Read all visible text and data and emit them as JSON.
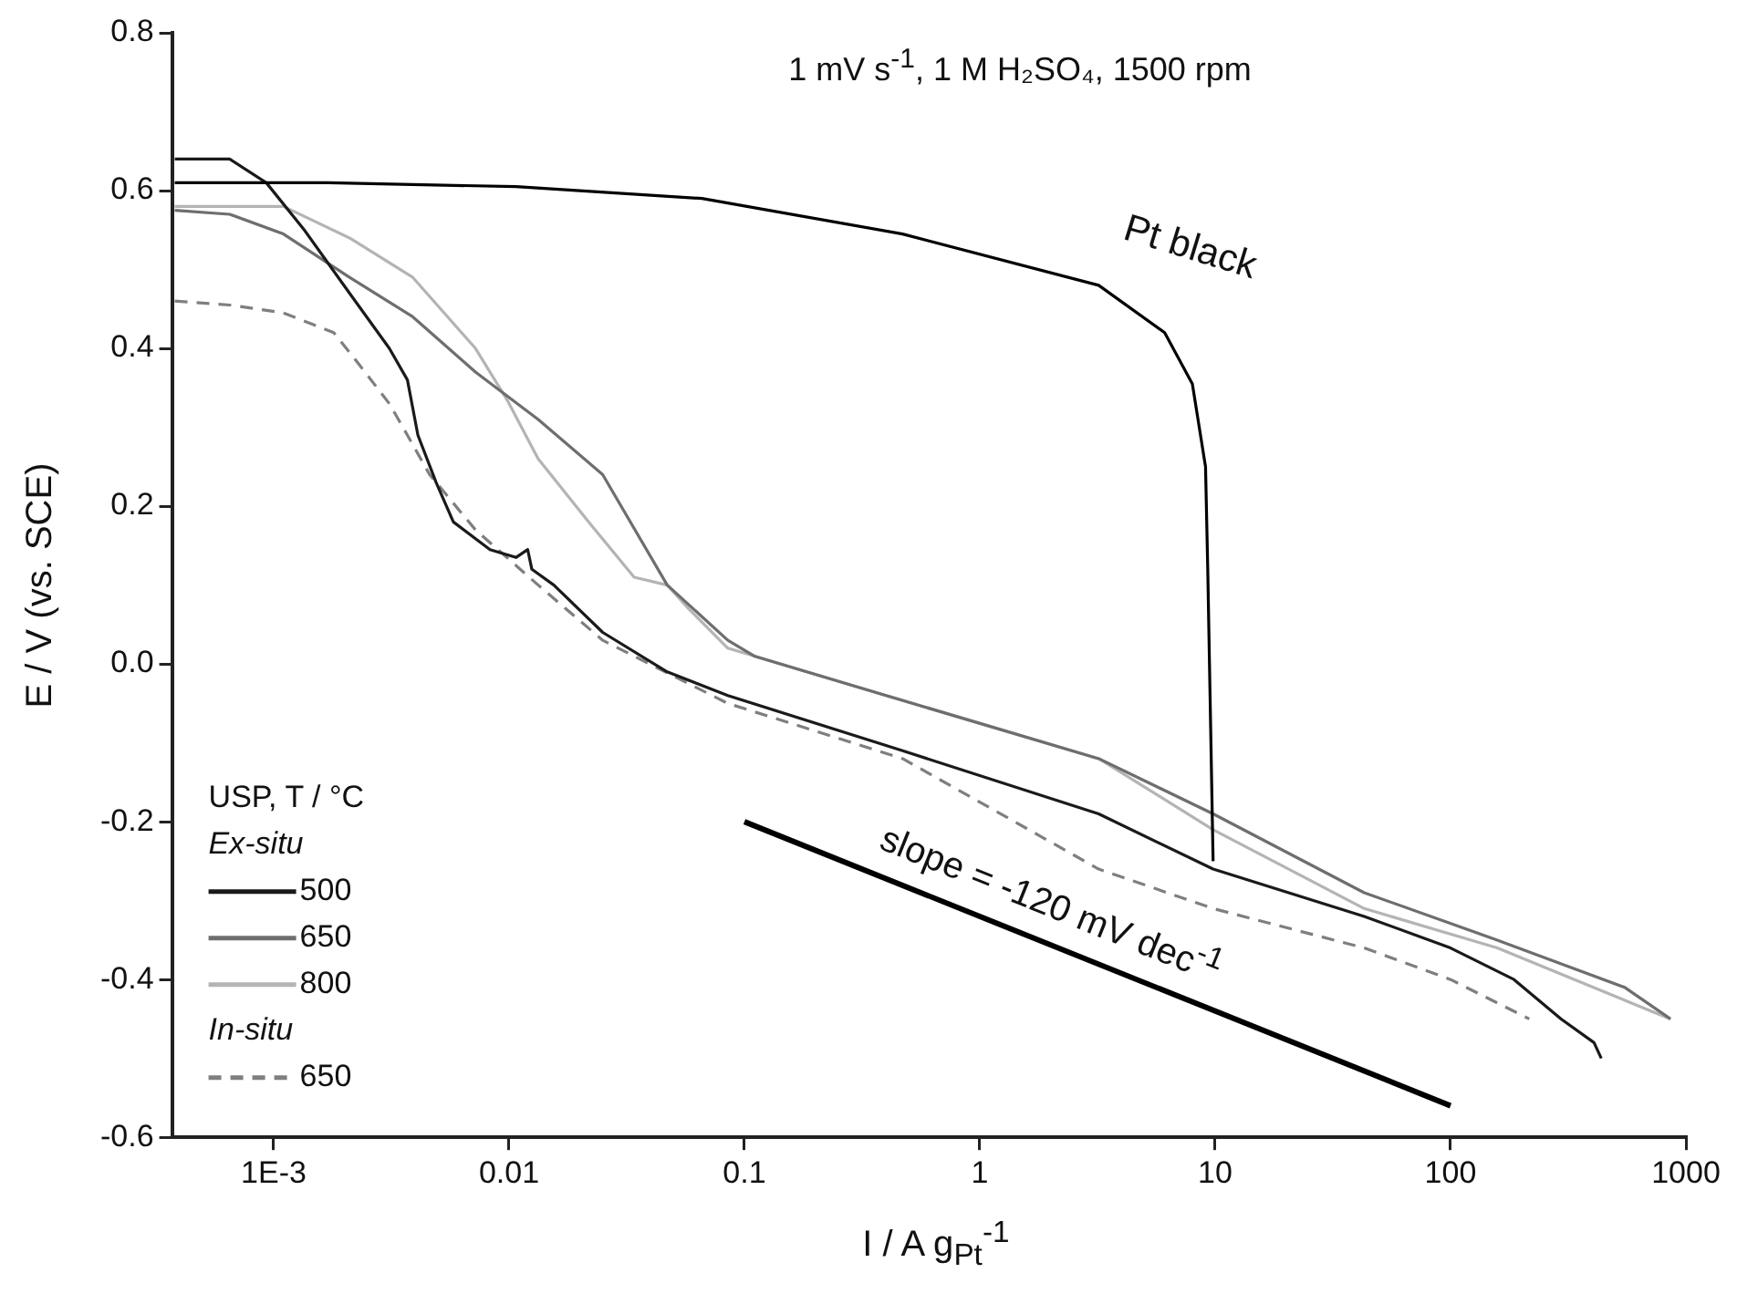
{
  "chart_data": {
    "type": "line",
    "title": "1 mV s$^{-1}$, 1 M H₂SO₄, 1500 rpm",
    "xlabel": "I / A g$_{Pt}$$^{-1}$",
    "ylabel": "E / V (vs. SCE)",
    "legend_title": "USP, T / °C",
    "log": "x",
    "grid": false,
    "legend": "bottom left",
    "marker": "none",
    "xlim": [
      0.00037,
      1000
    ],
    "ylim": [
      -0.6,
      0.8
    ],
    "xticks": [
      {
        "value": 0.001,
        "label": "1E-3"
      },
      0.01,
      0.1,
      1,
      10,
      100,
      1000
    ],
    "yticks": [
      0.8,
      0.6,
      0.4,
      0.2,
      {
        "value": 0,
        "label": "0.0"
      },
      -0.2,
      -0.4,
      -0.6
    ],
    "series": [
      {
        "name": "Pt black",
        "color": "#000000",
        "line_style": "solid",
        "x": [
          0.00038,
          0.0017,
          0.0107,
          0.066,
          0.47,
          3.2,
          6.1,
          8.0,
          9.1,
          9.3,
          9.8
        ],
        "values": [
          0.61,
          0.61,
          0.605,
          0.59,
          0.545,
          0.48,
          0.42,
          0.355,
          0.25,
          0.12,
          -0.25
        ]
      },
      {
        "name": "500",
        "color": "#1a1a1a",
        "line_style": "solid",
        "x": [
          0.00038,
          0.00065,
          0.00093,
          0.00135,
          0.0021,
          0.0031,
          0.0037,
          0.0041,
          0.0049,
          0.0058,
          0.0083,
          0.0107,
          0.012,
          0.0125,
          0.0155,
          0.025,
          0.047,
          0.085,
          0.47,
          3.2,
          9.8,
          43,
          100,
          186,
          295,
          407,
          437
        ],
        "values": [
          0.64,
          0.64,
          0.61,
          0.55,
          0.47,
          0.4,
          0.36,
          0.29,
          0.23,
          0.18,
          0.145,
          0.135,
          0.145,
          0.12,
          0.1,
          0.04,
          -0.01,
          -0.04,
          -0.11,
          -0.19,
          -0.26,
          -0.32,
          -0.36,
          -0.4,
          -0.45,
          -0.48,
          -0.5
        ]
      },
      {
        "name": "650",
        "color": "#6e6e6e",
        "line_style": "solid",
        "x": [
          0.00038,
          0.00065,
          0.0011,
          0.0021,
          0.0039,
          0.0072,
          0.0133,
          0.025,
          0.047,
          0.085,
          0.11,
          0.4,
          3.2,
          9.8,
          43,
          158,
          550,
          860
        ],
        "values": [
          0.575,
          0.57,
          0.545,
          0.49,
          0.44,
          0.37,
          0.31,
          0.24,
          0.1,
          0.03,
          0.01,
          -0.04,
          -0.12,
          -0.19,
          -0.29,
          -0.35,
          -0.41,
          -0.45
        ]
      },
      {
        "name": "800",
        "color": "#b4b4b4",
        "line_style": "solid",
        "x": [
          0.00038,
          0.0011,
          0.0021,
          0.0039,
          0.0072,
          0.0098,
          0.0133,
          0.0218,
          0.034,
          0.047,
          0.058,
          0.085,
          0.4,
          3.2,
          9.8,
          43,
          158,
          860
        ],
        "values": [
          0.58,
          0.58,
          0.54,
          0.49,
          0.4,
          0.335,
          0.26,
          0.18,
          0.11,
          0.1,
          0.07,
          0.02,
          -0.04,
          -0.12,
          -0.21,
          -0.31,
          -0.36,
          -0.45
        ]
      },
      {
        "name": "650",
        "color": "#7f7f7f",
        "line_style": "dashed",
        "x": [
          0.00038,
          0.00065,
          0.0011,
          0.0018,
          0.0023,
          0.0031,
          0.0037,
          0.0046,
          0.0072,
          0.0133,
          0.025,
          0.085,
          0.47,
          3.2,
          9.8,
          43,
          100,
          216
        ],
        "values": [
          0.46,
          0.455,
          0.445,
          0.42,
          0.38,
          0.33,
          0.29,
          0.24,
          0.17,
          0.1,
          0.03,
          -0.05,
          -0.12,
          -0.26,
          -0.31,
          -0.36,
          -0.4,
          -0.45
        ]
      },
      {
        "color": "#000000",
        "line_style": "solid",
        "x": [
          0.1,
          100
        ],
        "values": [
          -0.2,
          -0.56
        ]
      }
    ],
    "annotations": [
      "Ex-situ",
      "In-situ",
      "slope = -120 mV dec$^{-1}$"
    ]
  }
}
